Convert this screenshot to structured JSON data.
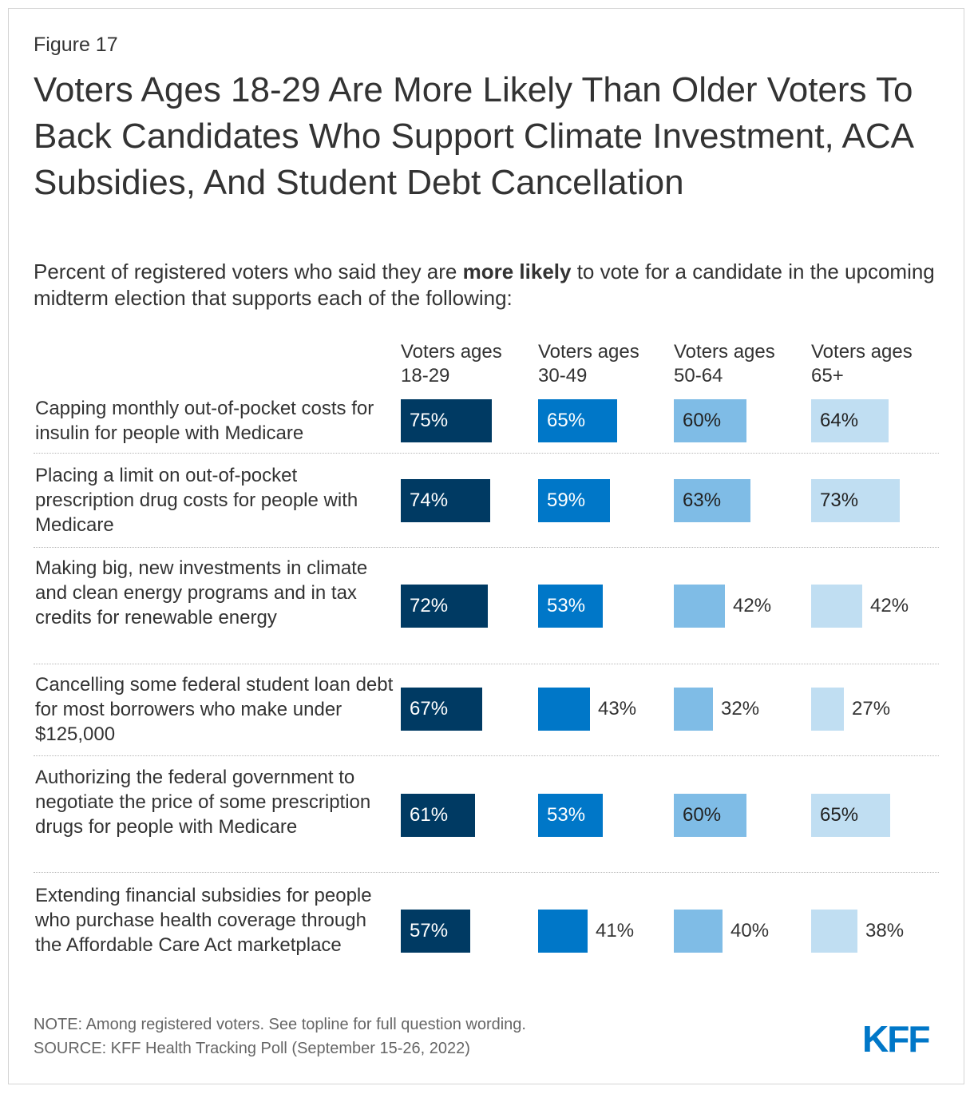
{
  "figure_label": "Figure 17",
  "title": "Voters Ages 18-29 Are More Likely Than Older Voters To Back Candidates Who Support Climate Investment, ACA Subsidies, And Student Debt Cancellation",
  "subtitle": {
    "pre": "Percent of registered voters who said they are ",
    "bold": "more likely",
    "post": " to vote for a candidate in the upcoming midterm election that supports each of the following:"
  },
  "note": "NOTE: Among registered voters. See topline for full question wording.",
  "source": "SOURCE: KFF Health Tracking Poll (September 15-26, 2022)",
  "logo": "KFF",
  "chart_data": {
    "type": "bar",
    "title": "Voters Ages 18-29 Are More Likely Than Older Voters To Back Candidates Who Support Climate Investment, ACA Subsidies, And Student Debt Cancellation",
    "categories": [
      "Capping monthly out-of-pocket costs for insulin for people with Medicare",
      "Placing a limit on out-of-pocket prescription drug costs for people with Medicare",
      "Making big, new investments in climate and clean energy programs and in tax credits for renewable energy",
      "Cancelling some federal student loan debt for most borrowers who make under $125,000",
      "Authorizing the federal government to negotiate the price of some prescription drugs for people with Medicare",
      "Extending financial subsidies for people who purchase health coverage through the Affordable Care Act marketplace"
    ],
    "series": [
      {
        "name": "Voters ages 18-29",
        "color": "#003a63",
        "values": [
          75,
          74,
          72,
          67,
          61,
          57
        ]
      },
      {
        "name": "Voters ages 30-49",
        "color": "#0077c8",
        "values": [
          65,
          59,
          53,
          43,
          53,
          41
        ]
      },
      {
        "name": "Voters ages 50-64",
        "color": "#7fbce6",
        "values": [
          60,
          63,
          42,
          32,
          60,
          40
        ]
      },
      {
        "name": "Voters ages 65+",
        "color": "#c0def2",
        "values": [
          64,
          73,
          42,
          27,
          65,
          38
        ]
      }
    ],
    "value_suffix": "%",
    "xlim": [
      0,
      100
    ]
  }
}
